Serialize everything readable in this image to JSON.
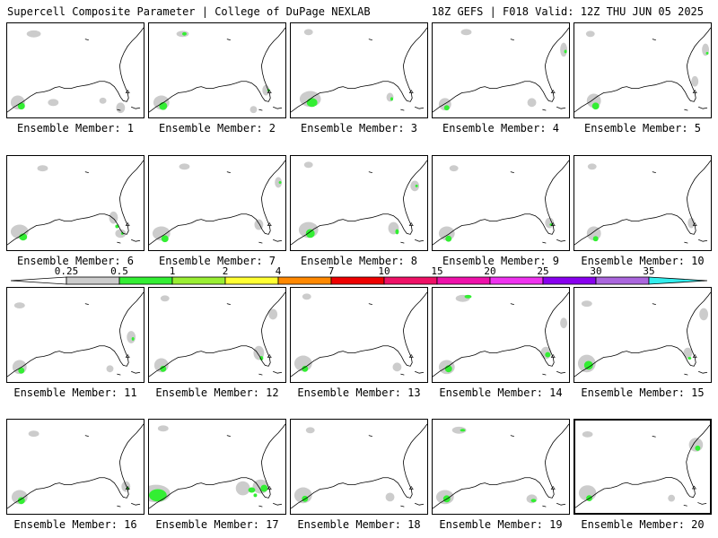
{
  "header": {
    "title": "Supercell Composite Parameter | College of DuPage NEXLAB",
    "run_info": "18Z GEFS | F018 Valid: 12Z THU JUN 05 2025"
  },
  "colorbar": {
    "labels": [
      "0.25",
      "0.5",
      "1",
      "2",
      "4",
      "7",
      "10",
      "15",
      "20",
      "25",
      "30",
      "35"
    ],
    "colors": [
      "#cccccc",
      "#33ee33",
      "#99ee33",
      "#ffff33",
      "#ff8800",
      "#ee0000",
      "#ee1166",
      "#ee11aa",
      "#ee33ee",
      "#8800ee",
      "#aa66dd",
      "#33eeee"
    ]
  },
  "panels": [
    {
      "label": "Ensemble Member: 1"
    },
    {
      "label": "Ensemble Member: 2"
    },
    {
      "label": "Ensemble Member: 3"
    },
    {
      "label": "Ensemble Member: 4"
    },
    {
      "label": "Ensemble Member: 5"
    },
    {
      "label": "Ensemble Member: 6"
    },
    {
      "label": "Ensemble Member: 7"
    },
    {
      "label": "Ensemble Member: 8"
    },
    {
      "label": "Ensemble Member: 9"
    },
    {
      "label": "Ensemble Member: 10"
    },
    {
      "label": "Ensemble Member: 11"
    },
    {
      "label": "Ensemble Member: 12"
    },
    {
      "label": "Ensemble Member: 13"
    },
    {
      "label": "Ensemble Member: 14"
    },
    {
      "label": "Ensemble Member: 15"
    },
    {
      "label": "Ensemble Member: 16"
    },
    {
      "label": "Ensemble Member: 17"
    },
    {
      "label": "Ensemble Member: 18"
    },
    {
      "label": "Ensemble Member: 19"
    },
    {
      "label": "Ensemble Member: 20"
    }
  ]
}
